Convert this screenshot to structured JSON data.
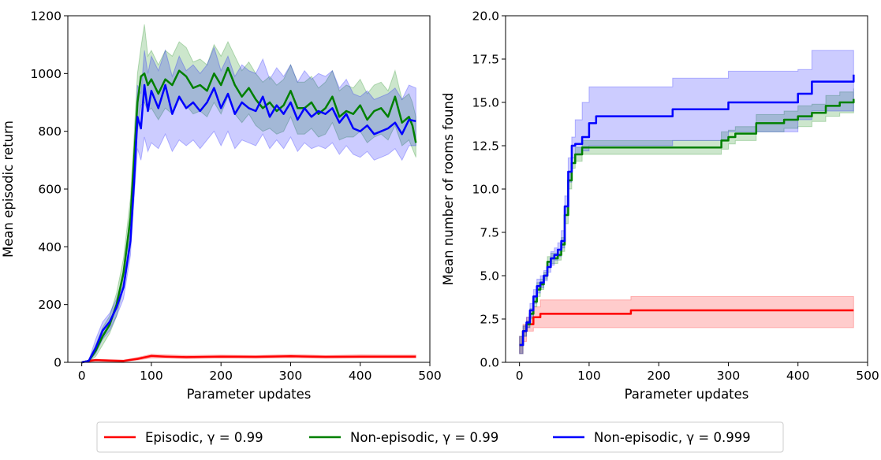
{
  "chart_data": [
    {
      "type": "line",
      "title": "",
      "xlabel": "Parameter updates",
      "ylabel": "Mean episodic return",
      "xlim": [
        -20,
        500
      ],
      "ylim": [
        0,
        1200
      ],
      "xticks": [
        "0",
        "100",
        "200",
        "300",
        "400",
        "500"
      ],
      "yticks": [
        "0",
        "200",
        "400",
        "600",
        "800",
        "1000",
        "1200"
      ],
      "grid": false,
      "series": [
        {
          "name": "Episodic, γ = 0.99",
          "color": "#ff0000",
          "x": [
            0,
            10,
            20,
            40,
            60,
            80,
            100,
            120,
            150,
            200,
            250,
            300,
            350,
            400,
            450,
            480
          ],
          "y": [
            0,
            5,
            8,
            6,
            5,
            12,
            22,
            20,
            18,
            20,
            19,
            21,
            19,
            20,
            20,
            20
          ],
          "lower": [
            0,
            3,
            5,
            3,
            3,
            8,
            15,
            15,
            13,
            15,
            14,
            16,
            14,
            15,
            15,
            15
          ],
          "upper": [
            0,
            8,
            11,
            9,
            8,
            17,
            28,
            26,
            24,
            25,
            24,
            27,
            24,
            26,
            25,
            25
          ]
        },
        {
          "name": "Non-episodic, γ = 0.99",
          "color": "#008000",
          "x": [
            0,
            10,
            20,
            30,
            40,
            50,
            60,
            70,
            75,
            80,
            85,
            90,
            95,
            100,
            110,
            120,
            130,
            140,
            150,
            160,
            170,
            180,
            190,
            200,
            210,
            220,
            230,
            240,
            250,
            260,
            270,
            280,
            290,
            300,
            310,
            320,
            330,
            340,
            350,
            360,
            370,
            380,
            390,
            400,
            410,
            420,
            430,
            440,
            450,
            460,
            470,
            475,
            480
          ],
          "y": [
            0,
            5,
            40,
            90,
            130,
            200,
            310,
            500,
            700,
            900,
            990,
            1000,
            960,
            980,
            930,
            980,
            960,
            1010,
            990,
            950,
            960,
            940,
            1000,
            960,
            1020,
            960,
            920,
            950,
            910,
            880,
            900,
            870,
            890,
            940,
            880,
            880,
            900,
            860,
            880,
            920,
            850,
            870,
            860,
            890,
            840,
            870,
            880,
            850,
            920,
            830,
            850,
            820,
            760
          ],
          "lower": [
            0,
            2,
            20,
            60,
            100,
            160,
            260,
            430,
            620,
            800,
            890,
            900,
            870,
            880,
            840,
            880,
            860,
            910,
            890,
            860,
            870,
            850,
            900,
            860,
            920,
            860,
            830,
            860,
            820,
            800,
            810,
            790,
            800,
            850,
            790,
            790,
            810,
            780,
            790,
            830,
            770,
            780,
            780,
            800,
            760,
            780,
            790,
            770,
            820,
            750,
            770,
            740,
            710
          ],
          "upper": [
            0,
            8,
            60,
            120,
            160,
            240,
            360,
            570,
            780,
            1000,
            1090,
            1170,
            1060,
            1080,
            1030,
            1080,
            1060,
            1110,
            1090,
            1040,
            1050,
            1030,
            1100,
            1060,
            1110,
            1060,
            1010,
            1040,
            1000,
            970,
            990,
            960,
            980,
            1030,
            970,
            970,
            990,
            950,
            970,
            1010,
            940,
            960,
            950,
            980,
            930,
            960,
            970,
            940,
            1010,
            910,
            930,
            900,
            850
          ]
        },
        {
          "name": "Non-episodic, γ = 0.999",
          "color": "#0000ff",
          "x": [
            0,
            10,
            20,
            30,
            40,
            50,
            60,
            70,
            75,
            80,
            85,
            90,
            95,
            100,
            110,
            120,
            130,
            140,
            150,
            160,
            170,
            180,
            190,
            200,
            210,
            220,
            230,
            240,
            250,
            260,
            270,
            280,
            290,
            300,
            310,
            320,
            330,
            340,
            350,
            360,
            370,
            380,
            390,
            400,
            410,
            420,
            430,
            440,
            450,
            460,
            470,
            480
          ],
          "y": [
            0,
            5,
            50,
            110,
            140,
            190,
            260,
            420,
            620,
            850,
            810,
            960,
            870,
            940,
            880,
            960,
            860,
            920,
            880,
            900,
            870,
            900,
            950,
            880,
            930,
            860,
            900,
            880,
            870,
            920,
            850,
            890,
            860,
            900,
            840,
            880,
            850,
            870,
            860,
            880,
            830,
            860,
            810,
            800,
            820,
            790,
            800,
            810,
            830,
            790,
            840,
            835
          ],
          "lower": [
            0,
            2,
            30,
            80,
            110,
            160,
            220,
            370,
            560,
            740,
            700,
            780,
            730,
            760,
            740,
            790,
            730,
            770,
            750,
            770,
            740,
            770,
            800,
            750,
            800,
            740,
            770,
            760,
            750,
            790,
            740,
            770,
            740,
            780,
            730,
            760,
            740,
            750,
            740,
            760,
            720,
            750,
            720,
            710,
            730,
            700,
            710,
            720,
            740,
            700,
            750,
            750
          ],
          "upper": [
            0,
            8,
            80,
            140,
            170,
            220,
            300,
            480,
            680,
            960,
            930,
            1080,
            1000,
            1060,
            1010,
            1080,
            990,
            1060,
            1010,
            1030,
            1000,
            1030,
            1090,
            1010,
            1060,
            990,
            1030,
            1010,
            1000,
            1050,
            980,
            1020,
            990,
            1030,
            970,
            1010,
            980,
            1000,
            990,
            1010,
            950,
            980,
            930,
            920,
            940,
            910,
            920,
            930,
            950,
            910,
            960,
            950
          ]
        }
      ]
    },
    {
      "type": "line",
      "title": "",
      "xlabel": "Parameter updates",
      "ylabel": "Mean number of rooms found",
      "xlim": [
        -20,
        500
      ],
      "ylim": [
        0,
        20
      ],
      "xticks": [
        "0",
        "100",
        "200",
        "300",
        "400",
        "500"
      ],
      "yticks": [
        "0.0",
        "2.5",
        "5.0",
        "7.5",
        "10.0",
        "12.5",
        "15.0",
        "17.5",
        "20.0"
      ],
      "grid": false,
      "series": [
        {
          "name": "Episodic, γ = 0.99",
          "color": "#ff0000",
          "step": true,
          "x": [
            0,
            5,
            10,
            20,
            30,
            160,
            480
          ],
          "y": [
            1.0,
            1.8,
            2.2,
            2.6,
            2.8,
            3.0,
            3.0
          ],
          "lower": [
            0.5,
            1.2,
            1.8,
            2.0,
            2.0,
            2.0,
            2.0
          ],
          "upper": [
            1.5,
            2.2,
            2.6,
            3.2,
            3.6,
            3.8,
            3.8
          ]
        },
        {
          "name": "Non-episodic, γ = 0.99",
          "color": "#008000",
          "step": true,
          "x": [
            0,
            5,
            10,
            15,
            20,
            25,
            30,
            35,
            40,
            45,
            50,
            55,
            60,
            65,
            70,
            75,
            80,
            90,
            280,
            290,
            300,
            310,
            340,
            380,
            400,
            420,
            440,
            460,
            480
          ],
          "y": [
            1.0,
            1.8,
            2.2,
            2.8,
            3.5,
            4.2,
            4.5,
            5.0,
            5.8,
            6.0,
            6.0,
            6.2,
            6.8,
            8.5,
            10.5,
            11.5,
            12.0,
            12.4,
            12.4,
            12.8,
            13.0,
            13.2,
            13.8,
            14.0,
            14.2,
            14.4,
            14.8,
            15.0,
            15.2
          ],
          "lower": [
            0.5,
            1.5,
            2.0,
            2.5,
            3.2,
            3.8,
            4.2,
            4.8,
            5.5,
            5.7,
            5.7,
            5.9,
            6.4,
            8.0,
            10.0,
            11.2,
            11.6,
            12.0,
            12.0,
            12.3,
            12.6,
            12.8,
            13.3,
            13.5,
            13.6,
            13.9,
            14.2,
            14.4,
            14.6
          ],
          "upper": [
            1.5,
            2.1,
            2.4,
            3.1,
            3.8,
            4.6,
            4.8,
            5.2,
            6.1,
            6.3,
            6.3,
            6.5,
            7.2,
            9.0,
            11.0,
            11.8,
            12.4,
            12.8,
            12.8,
            13.3,
            13.4,
            13.6,
            14.3,
            14.5,
            14.8,
            14.9,
            15.4,
            15.6,
            15.8
          ]
        },
        {
          "name": "Non-episodic, γ = 0.999",
          "color": "#0000ff",
          "step": true,
          "x": [
            0,
            5,
            10,
            15,
            20,
            25,
            30,
            35,
            40,
            45,
            50,
            55,
            60,
            65,
            70,
            75,
            80,
            90,
            100,
            110,
            220,
            300,
            400,
            420,
            480
          ],
          "y": [
            1.0,
            1.8,
            2.3,
            3.0,
            3.8,
            4.4,
            4.6,
            5.0,
            5.5,
            6.0,
            6.2,
            6.5,
            7.0,
            9.0,
            11.0,
            12.5,
            12.6,
            13.0,
            13.8,
            14.2,
            14.6,
            15.0,
            15.5,
            16.2,
            16.6
          ],
          "lower": [
            0.5,
            1.5,
            2.0,
            2.6,
            3.4,
            4.0,
            4.3,
            4.7,
            5.2,
            5.6,
            5.9,
            6.1,
            6.6,
            8.5,
            10.4,
            11.8,
            12.0,
            12.2,
            12.5,
            12.5,
            12.8,
            13.3,
            14.0,
            14.5,
            15.0
          ],
          "upper": [
            1.5,
            2.1,
            2.6,
            3.4,
            4.2,
            4.8,
            5.0,
            5.3,
            5.8,
            6.4,
            6.6,
            6.9,
            7.6,
            9.6,
            11.8,
            13.0,
            14.0,
            15.0,
            15.9,
            15.9,
            16.4,
            16.8,
            16.9,
            18.0,
            18.0
          ]
        }
      ]
    }
  ],
  "legend": {
    "items": [
      {
        "label": "Episodic, γ = 0.99",
        "color": "#ff0000"
      },
      {
        "label": "Non-episodic, γ = 0.99",
        "color": "#008000"
      },
      {
        "label": "Non-episodic, γ = 0.999",
        "color": "#0000ff"
      }
    ]
  }
}
